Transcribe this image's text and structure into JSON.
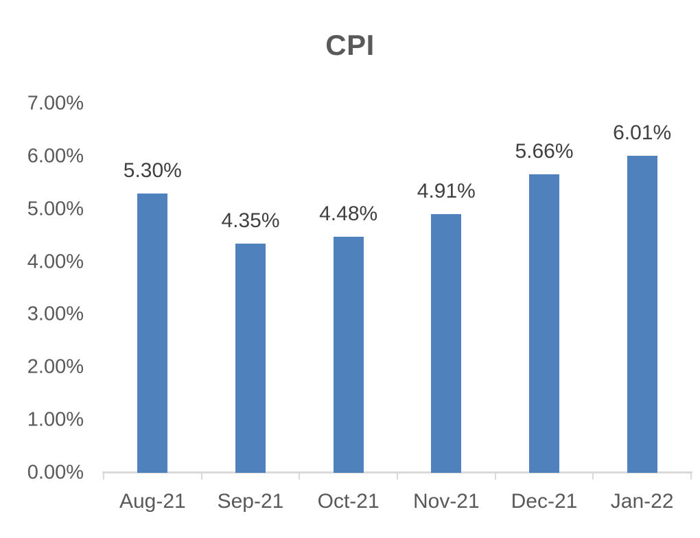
{
  "chart_data": {
    "type": "bar",
    "title": "CPI",
    "categories": [
      "Aug-21",
      "Sep-21",
      "Oct-21",
      "Nov-21",
      "Dec-21",
      "Jan-22"
    ],
    "values": [
      5.3,
      4.35,
      4.48,
      4.91,
      5.66,
      6.01
    ],
    "data_labels": [
      "5.30%",
      "4.35%",
      "4.48%",
      "4.91%",
      "5.66%",
      "6.01%"
    ],
    "y_tick_labels": [
      "0.00%",
      "1.00%",
      "2.00%",
      "3.00%",
      "4.00%",
      "5.00%",
      "6.00%",
      "7.00%"
    ],
    "ylim": [
      0,
      7
    ],
    "y_step": 1,
    "xlabel": "",
    "ylabel": "",
    "grid": false,
    "legend": false,
    "colors": {
      "bar_fill": "#4F81BD",
      "title_text": "#595959",
      "axis_label_text": "#595959",
      "data_label_text": "#404040",
      "axis_line": "#D9D9D9"
    }
  }
}
